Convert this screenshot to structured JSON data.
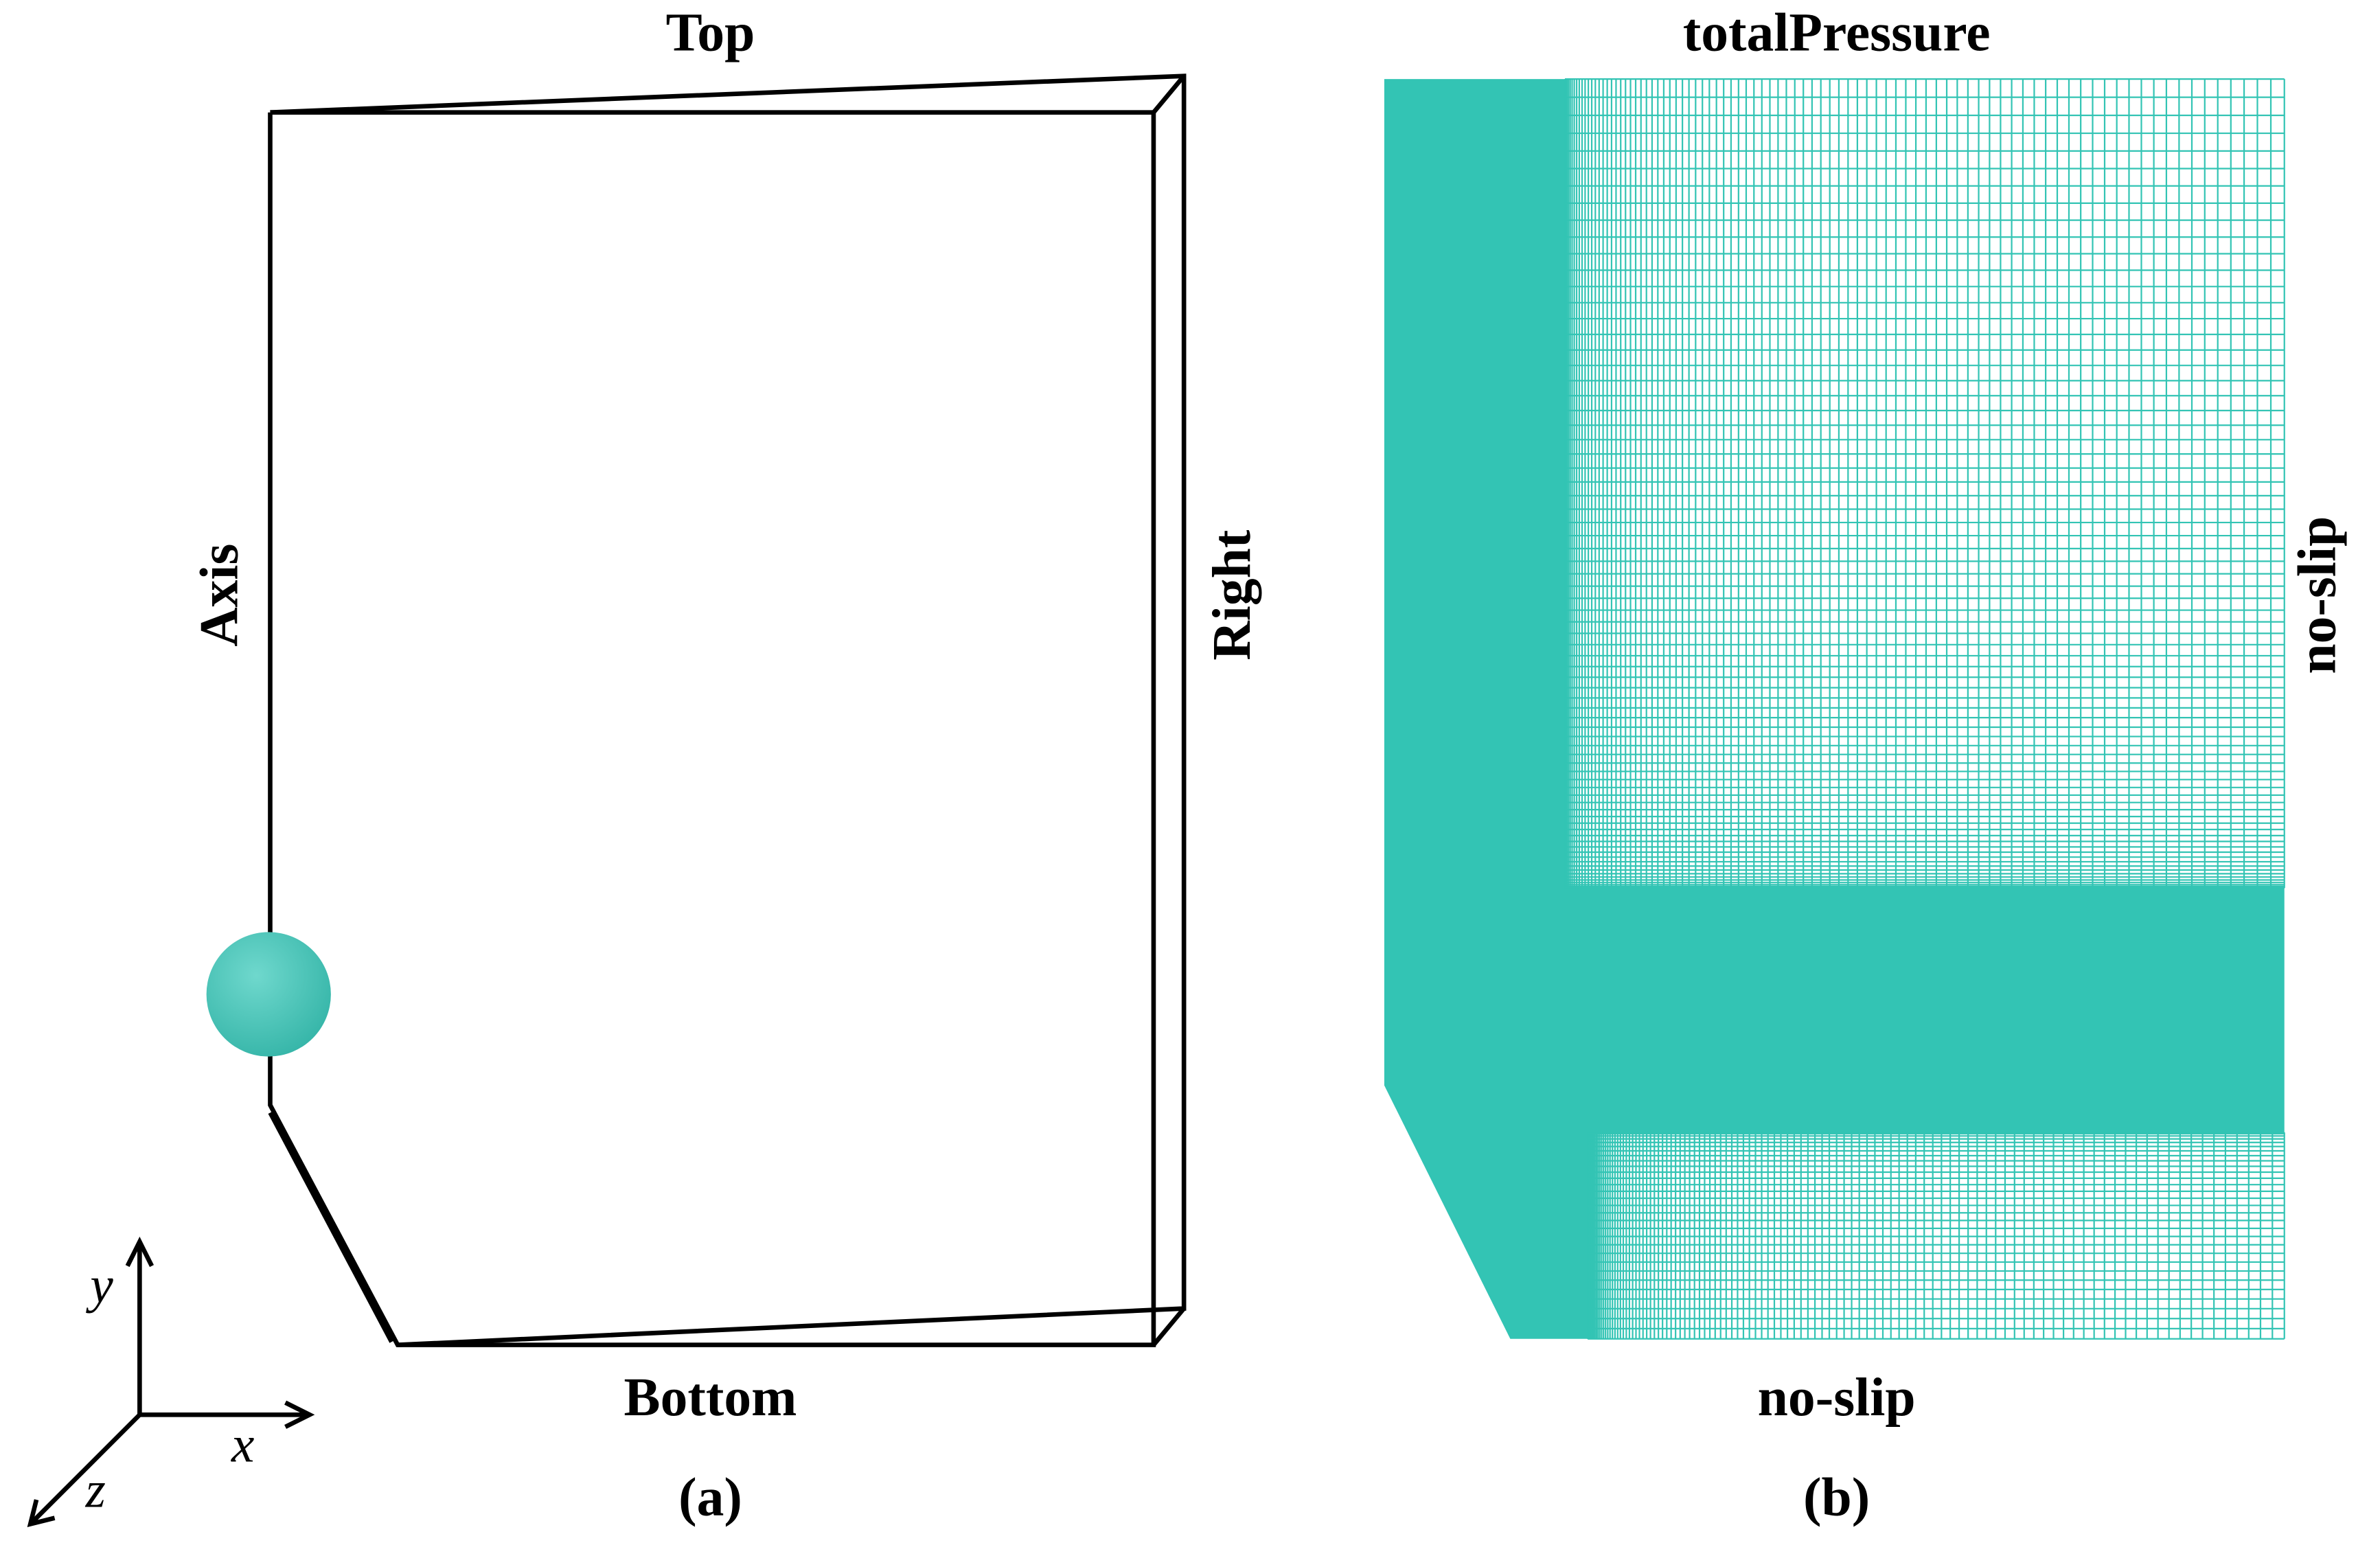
{
  "panel_a": {
    "labels": {
      "top": "Top",
      "axis": "Axis",
      "right": "Right",
      "bottom": "Bottom"
    },
    "coordinate_axes": {
      "x": "x",
      "y": "y",
      "z": "z"
    },
    "caption": "(a)"
  },
  "panel_b": {
    "labels": {
      "top": "totalPressure",
      "right": "no-slip",
      "bottom": "no-slip"
    },
    "caption": "(b)"
  }
}
